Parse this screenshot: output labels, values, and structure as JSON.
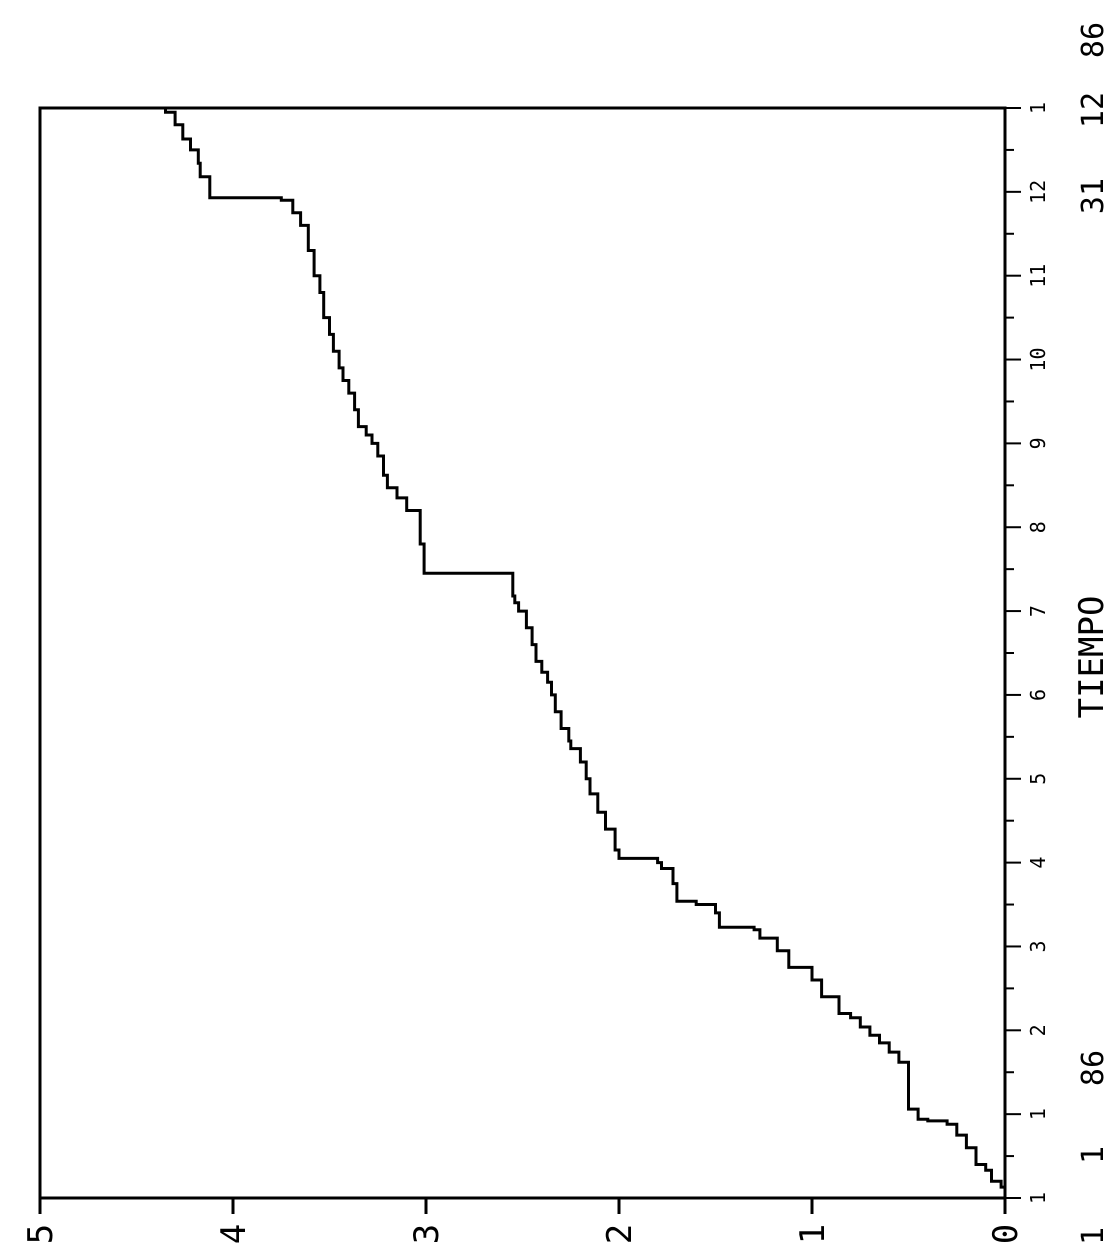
{
  "chart_data": {
    "type": "line",
    "title": "",
    "xlabel": "TIEMPO",
    "ylabel": "",
    "x_range_label_start": [
      "1",
      "86"
    ],
    "x_range_label_end": [
      "31",
      "12",
      "86"
    ],
    "x_ticks": [
      "1",
      "1",
      "2",
      "3",
      "4",
      "5",
      "6",
      "7",
      "8",
      "9",
      "10",
      "11",
      "12",
      "1"
    ],
    "x_tick_positions": [
      0,
      1,
      2,
      3,
      4,
      5,
      6,
      7,
      8,
      9,
      10,
      11,
      12,
      13
    ],
    "xlim": [
      0,
      13
    ],
    "y_ticks": [
      "0",
      "1",
      "2",
      "3",
      "4",
      "5"
    ],
    "ylim": [
      0,
      5
    ],
    "corner_label": "1",
    "grid": false,
    "line_color": "#000000",
    "series": [
      {
        "name": "",
        "points": [
          [
            0.0,
            0.0
          ],
          [
            0.13,
            0.02
          ],
          [
            0.2,
            0.07
          ],
          [
            0.33,
            0.1
          ],
          [
            0.4,
            0.15
          ],
          [
            0.6,
            0.2
          ],
          [
            0.75,
            0.25
          ],
          [
            0.88,
            0.3
          ],
          [
            0.92,
            0.4
          ],
          [
            0.94,
            0.45
          ],
          [
            1.06,
            0.5
          ],
          [
            1.62,
            0.55
          ],
          [
            1.74,
            0.6
          ],
          [
            1.85,
            0.65
          ],
          [
            1.94,
            0.7
          ],
          [
            2.04,
            0.75
          ],
          [
            2.15,
            0.8
          ],
          [
            2.2,
            0.86
          ],
          [
            2.4,
            0.95
          ],
          [
            2.6,
            1.0
          ],
          [
            2.75,
            1.12
          ],
          [
            2.95,
            1.18
          ],
          [
            3.1,
            1.27
          ],
          [
            3.2,
            1.3
          ],
          [
            3.23,
            1.48
          ],
          [
            3.4,
            1.5
          ],
          [
            3.5,
            1.6
          ],
          [
            3.54,
            1.7
          ],
          [
            3.75,
            1.72
          ],
          [
            3.93,
            1.78
          ],
          [
            4.0,
            1.8
          ],
          [
            4.05,
            2.0
          ],
          [
            4.15,
            2.02
          ],
          [
            4.4,
            2.07
          ],
          [
            4.6,
            2.11
          ],
          [
            4.82,
            2.15
          ],
          [
            5.0,
            2.17
          ],
          [
            5.2,
            2.2
          ],
          [
            5.36,
            2.25
          ],
          [
            5.45,
            2.26
          ],
          [
            5.6,
            2.3
          ],
          [
            5.8,
            2.33
          ],
          [
            6.0,
            2.35
          ],
          [
            6.15,
            2.37
          ],
          [
            6.27,
            2.4
          ],
          [
            6.4,
            2.43
          ],
          [
            6.6,
            2.45
          ],
          [
            6.8,
            2.48
          ],
          [
            7.0,
            2.52
          ],
          [
            7.1,
            2.54
          ],
          [
            7.18,
            2.55
          ],
          [
            7.45,
            3.01
          ],
          [
            7.8,
            3.03
          ],
          [
            8.2,
            3.1
          ],
          [
            8.35,
            3.15
          ],
          [
            8.47,
            3.2
          ],
          [
            8.62,
            3.22
          ],
          [
            8.85,
            3.25
          ],
          [
            9.0,
            3.28
          ],
          [
            9.1,
            3.31
          ],
          [
            9.2,
            3.35
          ],
          [
            9.4,
            3.37
          ],
          [
            9.6,
            3.4
          ],
          [
            9.75,
            3.43
          ],
          [
            9.9,
            3.45
          ],
          [
            10.1,
            3.48
          ],
          [
            10.3,
            3.5
          ],
          [
            10.5,
            3.53
          ],
          [
            10.8,
            3.55
          ],
          [
            11.0,
            3.58
          ],
          [
            11.3,
            3.61
          ],
          [
            11.6,
            3.65
          ],
          [
            11.75,
            3.69
          ],
          [
            11.9,
            3.75
          ],
          [
            11.93,
            4.12
          ],
          [
            12.18,
            4.17
          ],
          [
            12.34,
            4.18
          ],
          [
            12.5,
            4.22
          ],
          [
            12.63,
            4.26
          ],
          [
            12.8,
            4.3
          ],
          [
            12.95,
            4.35
          ],
          [
            13.0,
            4.4
          ]
        ]
      }
    ]
  }
}
